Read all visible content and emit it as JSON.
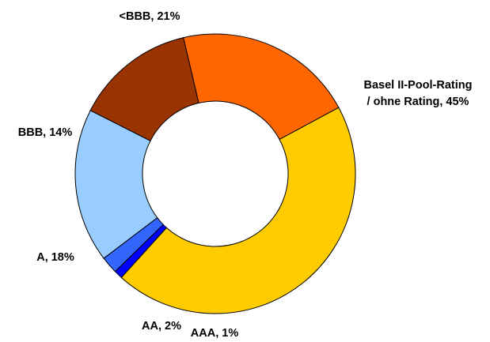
{
  "chart_data": {
    "type": "pie",
    "variant": "donut",
    "slices": [
      {
        "label": "Basel II-Pool-Rating / ohne Rating",
        "label_lines": [
          "Basel II-Pool-Rating",
          "/ ohne Rating, 45%"
        ],
        "value": 45,
        "color": "#FFCC00"
      },
      {
        "label": "AAA",
        "label_lines": [
          "AAA, 1%"
        ],
        "value": 1,
        "color": "#0000FF"
      },
      {
        "label": "AA",
        "label_lines": [
          "AA, 2%"
        ],
        "value": 2,
        "color": "#3366FF"
      },
      {
        "label": "A",
        "label_lines": [
          "A, 18%"
        ],
        "value": 18,
        "color": "#99CCFF"
      },
      {
        "label": "BBB",
        "label_lines": [
          "BBB, 14%"
        ],
        "value": 14,
        "color": "#993300"
      },
      {
        "label": "<BBB",
        "label_lines": [
          "<BBB, 21%"
        ],
        "value": 21,
        "color": "#FF6600"
      }
    ],
    "legend": "none",
    "title": ""
  }
}
